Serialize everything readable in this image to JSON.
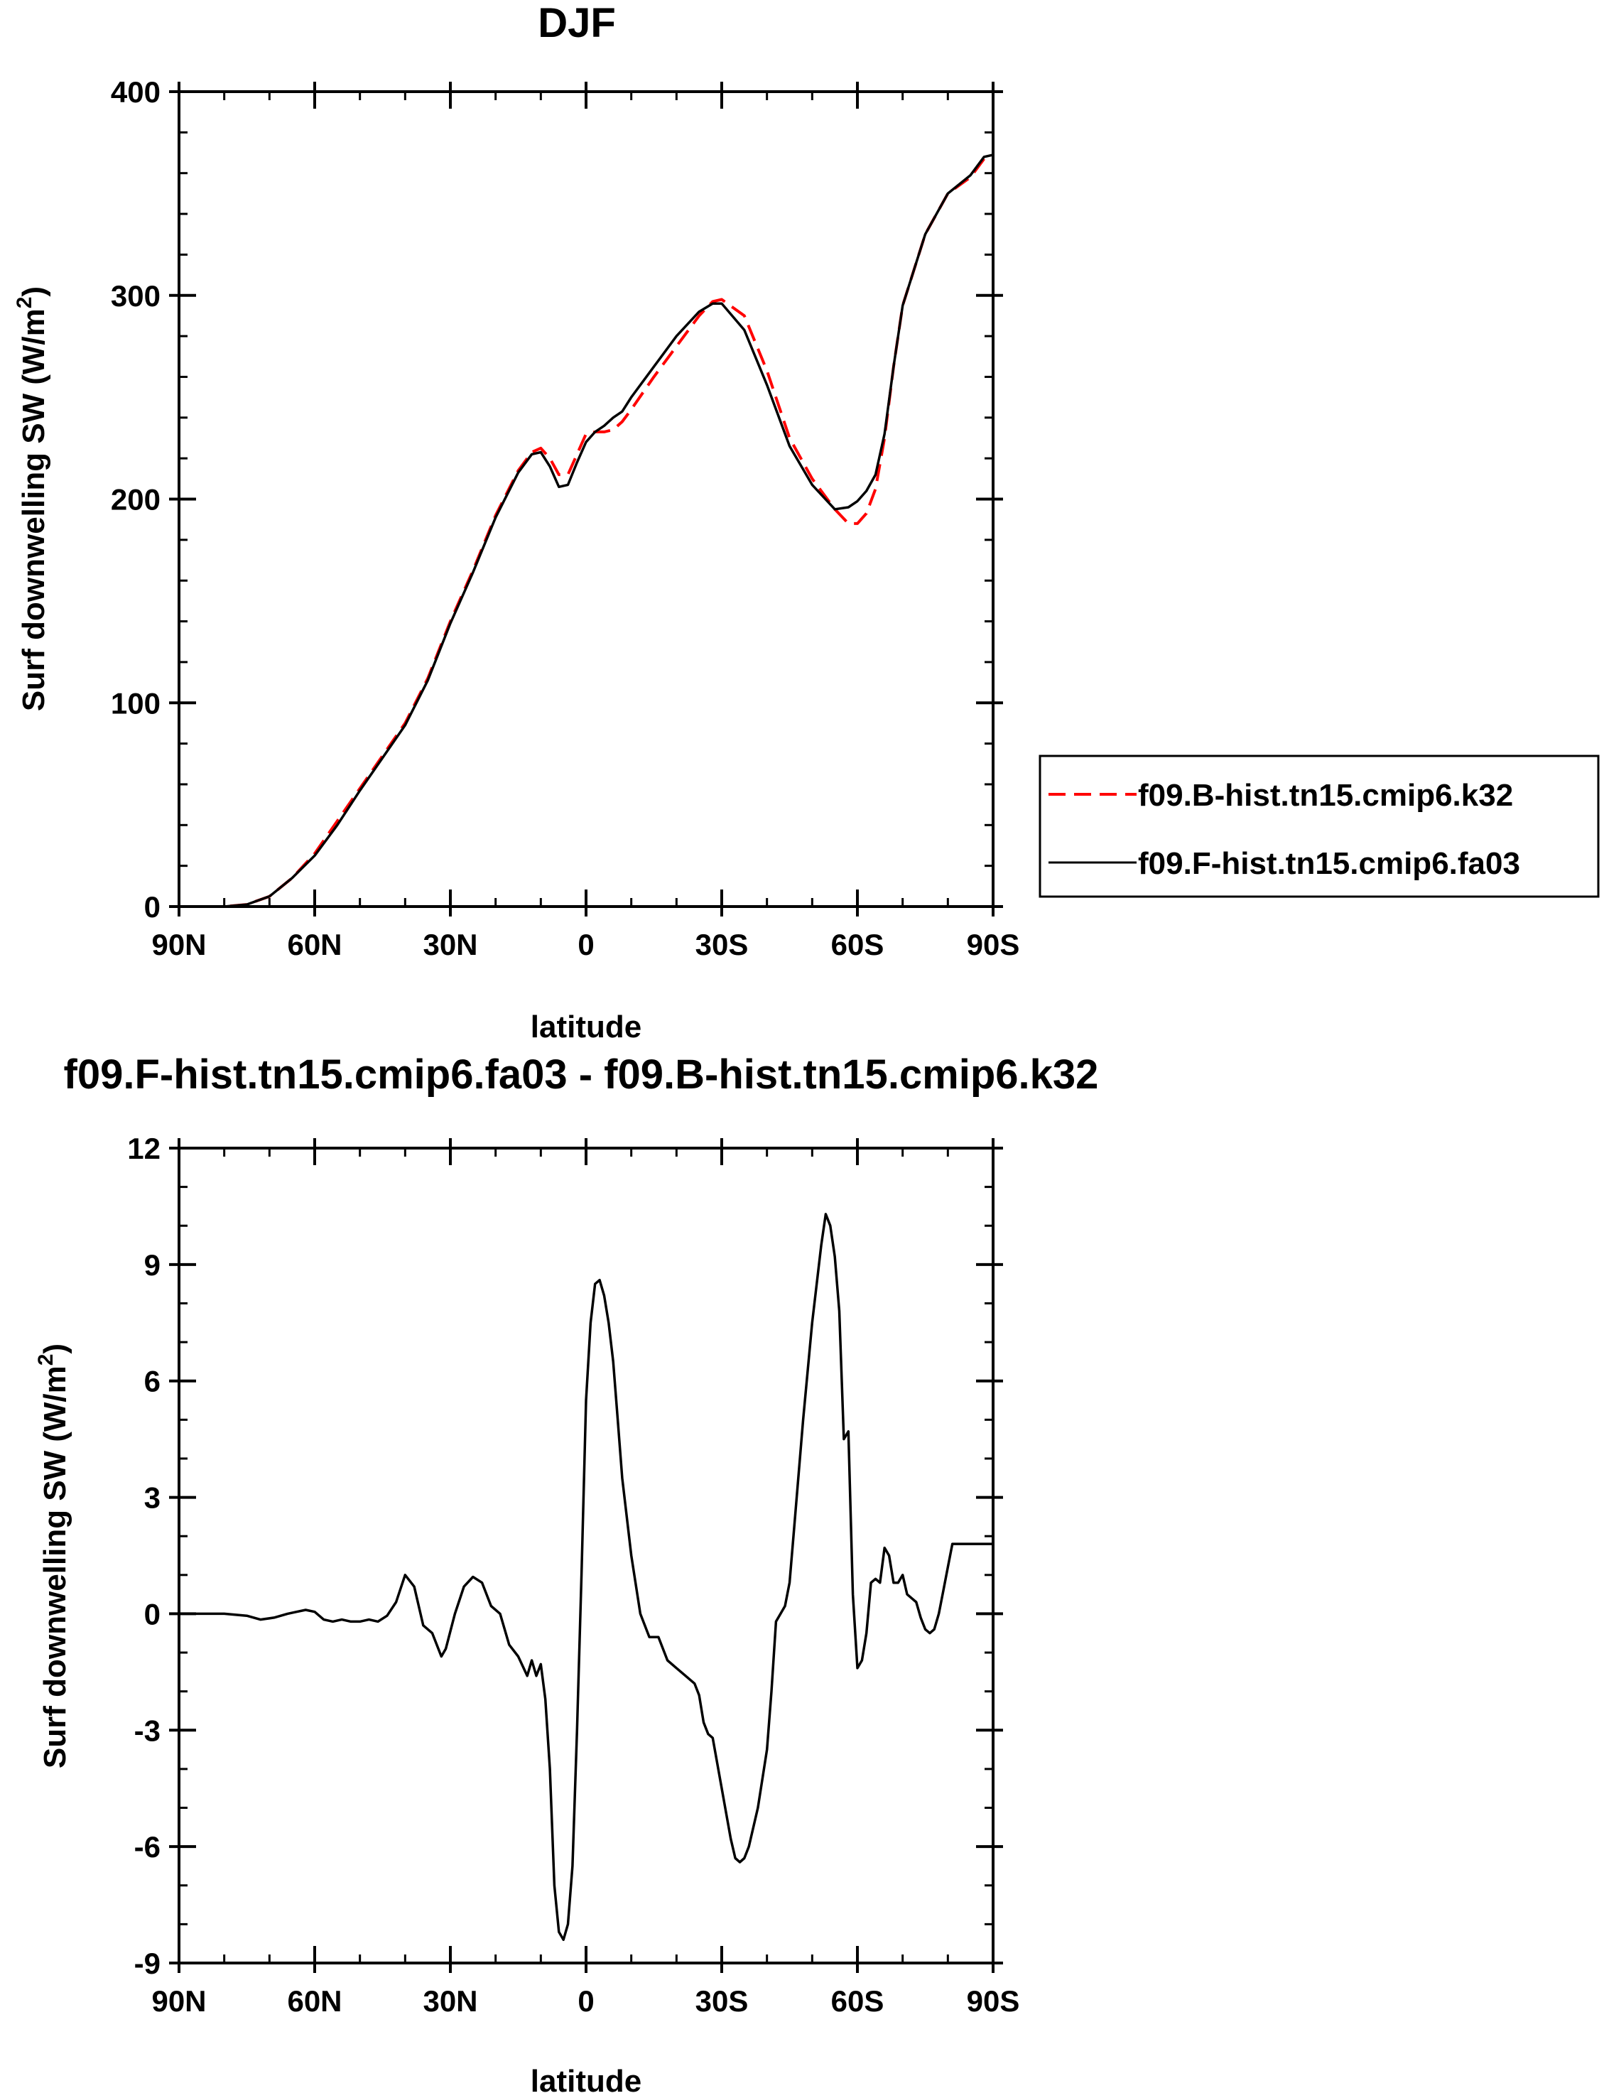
{
  "chart_data": [
    {
      "type": "line",
      "title": "DJF",
      "xlabel": "latitude",
      "ylabel": "Surf downwelling SW",
      "ylabel_unit_prefix": "(W/m",
      "ylabel_unit_sup": "2",
      "ylabel_unit_suffix": ")",
      "xlim": [
        -90,
        90
      ],
      "ylim": [
        0,
        400
      ],
      "xticks": [
        -90,
        -60,
        -30,
        0,
        30,
        60,
        90
      ],
      "xtick_labels": [
        "90N",
        "60N",
        "30N",
        "0",
        "30S",
        "60S",
        "90S"
      ],
      "yticks": [
        0,
        100,
        200,
        300,
        400
      ],
      "ytick_labels": [
        "0",
        "100",
        "200",
        "300",
        "400"
      ],
      "y_minor_step": 20,
      "x_minor_step": 10,
      "legend_position": "right",
      "series": [
        {
          "name": "f09.B-hist.tn15.cmip6.k32",
          "color": "#ff0000",
          "style": "dashed",
          "x": [
            -90,
            -85,
            -80,
            -75,
            -70,
            -65,
            -60,
            -55,
            -50,
            -45,
            -40,
            -35,
            -30,
            -25,
            -20,
            -15,
            -12,
            -10,
            -8,
            -6,
            -4,
            -2,
            0,
            2,
            4,
            6,
            8,
            10,
            15,
            20,
            25,
            28,
            30,
            35,
            40,
            45,
            50,
            55,
            58,
            60,
            62,
            64,
            66,
            68,
            70,
            75,
            80,
            85,
            88,
            90
          ],
          "y": [
            0,
            0,
            0,
            1,
            5,
            14,
            26,
            42,
            58,
            74,
            90,
            112,
            140,
            165,
            192,
            214,
            223,
            225,
            220,
            212,
            212,
            222,
            232,
            233,
            233,
            234,
            238,
            244,
            260,
            275,
            290,
            297,
            298,
            290,
            263,
            230,
            210,
            195,
            188,
            188,
            193,
            205,
            230,
            265,
            295,
            330,
            350,
            358,
            367,
            368
          ]
        },
        {
          "name": "f09.F-hist.tn15.cmip6.fa03",
          "color": "#000000",
          "style": "solid",
          "x": [
            -90,
            -85,
            -80,
            -75,
            -70,
            -65,
            -60,
            -55,
            -50,
            -45,
            -40,
            -35,
            -30,
            -25,
            -20,
            -15,
            -12,
            -10,
            -8,
            -6,
            -4,
            -2,
            0,
            2,
            4,
            6,
            8,
            10,
            15,
            20,
            25,
            28,
            30,
            35,
            40,
            45,
            50,
            55,
            58,
            60,
            62,
            64,
            66,
            68,
            70,
            75,
            80,
            85,
            88,
            90
          ],
          "y": [
            0,
            0,
            0,
            1,
            5,
            14,
            25,
            40,
            57,
            73,
            89,
            111,
            139,
            164,
            191,
            213,
            222,
            223,
            216,
            206,
            207,
            218,
            228,
            233,
            236,
            240,
            243,
            250,
            265,
            280,
            292,
            296,
            296,
            283,
            256,
            226,
            207,
            195,
            196,
            199,
            204,
            212,
            232,
            265,
            295,
            330,
            350,
            359,
            368,
            369
          ]
        }
      ]
    },
    {
      "type": "line",
      "title": "f09.F-hist.tn15.cmip6.fa03 - f09.B-hist.tn15.cmip6.k32",
      "xlabel": "latitude",
      "ylabel": "Surf downwelling SW",
      "ylabel_unit_prefix": "(W/m",
      "ylabel_unit_sup": "2",
      "ylabel_unit_suffix": ")",
      "xlim": [
        -90,
        90
      ],
      "ylim": [
        -9,
        12
      ],
      "xticks": [
        -90,
        -60,
        -30,
        0,
        30,
        60,
        90
      ],
      "xtick_labels": [
        "90N",
        "60N",
        "30N",
        "0",
        "30S",
        "60S",
        "90S"
      ],
      "yticks": [
        -9,
        -6,
        -3,
        0,
        3,
        6,
        9,
        12
      ],
      "ytick_labels": [
        "-9",
        "-6",
        "-3",
        "0",
        "3",
        "6",
        "9",
        "12"
      ],
      "y_minor_step": 1,
      "x_minor_step": 10,
      "series": [
        {
          "name": "",
          "color": "#000000",
          "style": "solid",
          "x": [
            -90,
            -80,
            -75,
            -72,
            -69,
            -66,
            -64,
            -62,
            -60,
            -58,
            -56,
            -54,
            -52,
            -50,
            -48,
            -46,
            -44,
            -42,
            -40,
            -38,
            -36,
            -34,
            -32,
            -31,
            -29,
            -27,
            -25,
            -23,
            -21,
            -19,
            -17,
            -15,
            -13,
            -12,
            -11,
            -10,
            -9,
            -8,
            -7,
            -6,
            -5,
            -4,
            -3,
            -2,
            -1,
            0,
            1,
            2,
            3,
            4,
            5,
            6,
            7,
            8,
            10,
            12,
            14,
            16,
            18,
            20,
            22,
            24,
            25,
            26,
            27,
            28,
            30,
            32,
            33,
            34,
            35,
            36,
            38,
            40,
            41,
            42,
            43,
            44,
            45,
            46,
            48,
            50,
            52,
            53,
            54,
            55,
            56,
            57,
            58,
            59,
            60,
            61,
            62,
            63,
            64,
            65,
            66,
            67,
            68,
            69,
            70,
            71,
            72,
            73,
            74,
            75,
            76,
            77,
            78,
            79,
            80,
            81,
            82,
            83,
            84,
            85,
            86,
            87,
            88,
            89,
            90
          ],
          "y": [
            0,
            0,
            -0.05,
            -0.15,
            -0.1,
            0,
            0.05,
            0.1,
            0.05,
            -0.15,
            -0.2,
            -0.15,
            -0.2,
            -0.2,
            -0.15,
            -0.2,
            -0.05,
            0.3,
            1.0,
            0.7,
            -0.3,
            -0.5,
            -1.1,
            -0.9,
            0,
            0.7,
            0.95,
            0.8,
            0.2,
            0,
            -0.8,
            -1.1,
            -1.6,
            -1.2,
            -1.6,
            -1.3,
            -2.2,
            -4,
            -7,
            -8.2,
            -8.4,
            -8,
            -6.5,
            -3,
            1,
            5.5,
            7.5,
            8.5,
            8.6,
            8.2,
            7.5,
            6.5,
            5,
            3.5,
            1.5,
            0,
            -0.6,
            -0.6,
            -1.2,
            -1.4,
            -1.6,
            -1.8,
            -2.1,
            -2.8,
            -3.1,
            -3.2,
            -4.5,
            -5.8,
            -6.3,
            -6.4,
            -6.3,
            -6.0,
            -5.0,
            -3.5,
            -2.0,
            -0.2,
            0,
            0.2,
            0.8,
            2.2,
            5,
            7.5,
            9.5,
            10.3,
            10.0,
            9.2,
            7.8,
            4.5,
            4.7,
            0.5,
            -1.4,
            -1.2,
            -0.5,
            0.8,
            0.9,
            0.8,
            1.7,
            1.5,
            0.8,
            0.8,
            1.0,
            0.5,
            0.4,
            0.3,
            -0.1,
            -0.4,
            -0.5,
            -0.4,
            0,
            0.6,
            1.2,
            1.8,
            1.8,
            1.8,
            1.8,
            1.8,
            1.8,
            1.8,
            1.8,
            1.8,
            1.8
          ]
        }
      ]
    }
  ]
}
